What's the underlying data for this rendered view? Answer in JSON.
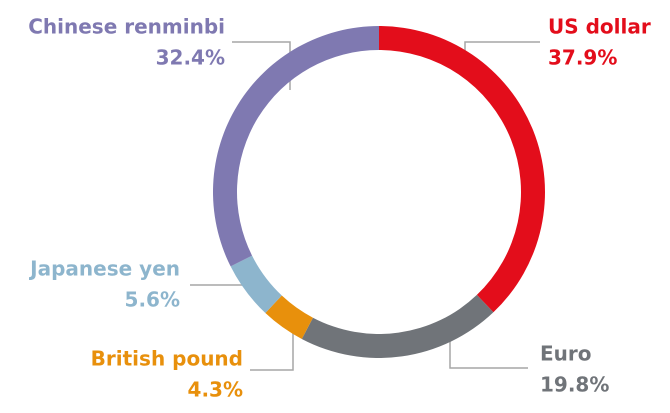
{
  "chart_data": {
    "type": "donut",
    "categories": [
      "US dollar",
      "Euro",
      "British pound",
      "Japanese yen",
      "Chinese renminbi"
    ],
    "values": [
      37.9,
      19.8,
      4.3,
      5.6,
      32.4
    ],
    "value_labels": [
      "37.9%",
      "19.8%",
      "4.3%",
      "5.6%",
      "32.4%"
    ],
    "colors": [
      "#e30d1b",
      "#707479",
      "#e8900c",
      "#8db5cd",
      "#7f79b1"
    ]
  }
}
